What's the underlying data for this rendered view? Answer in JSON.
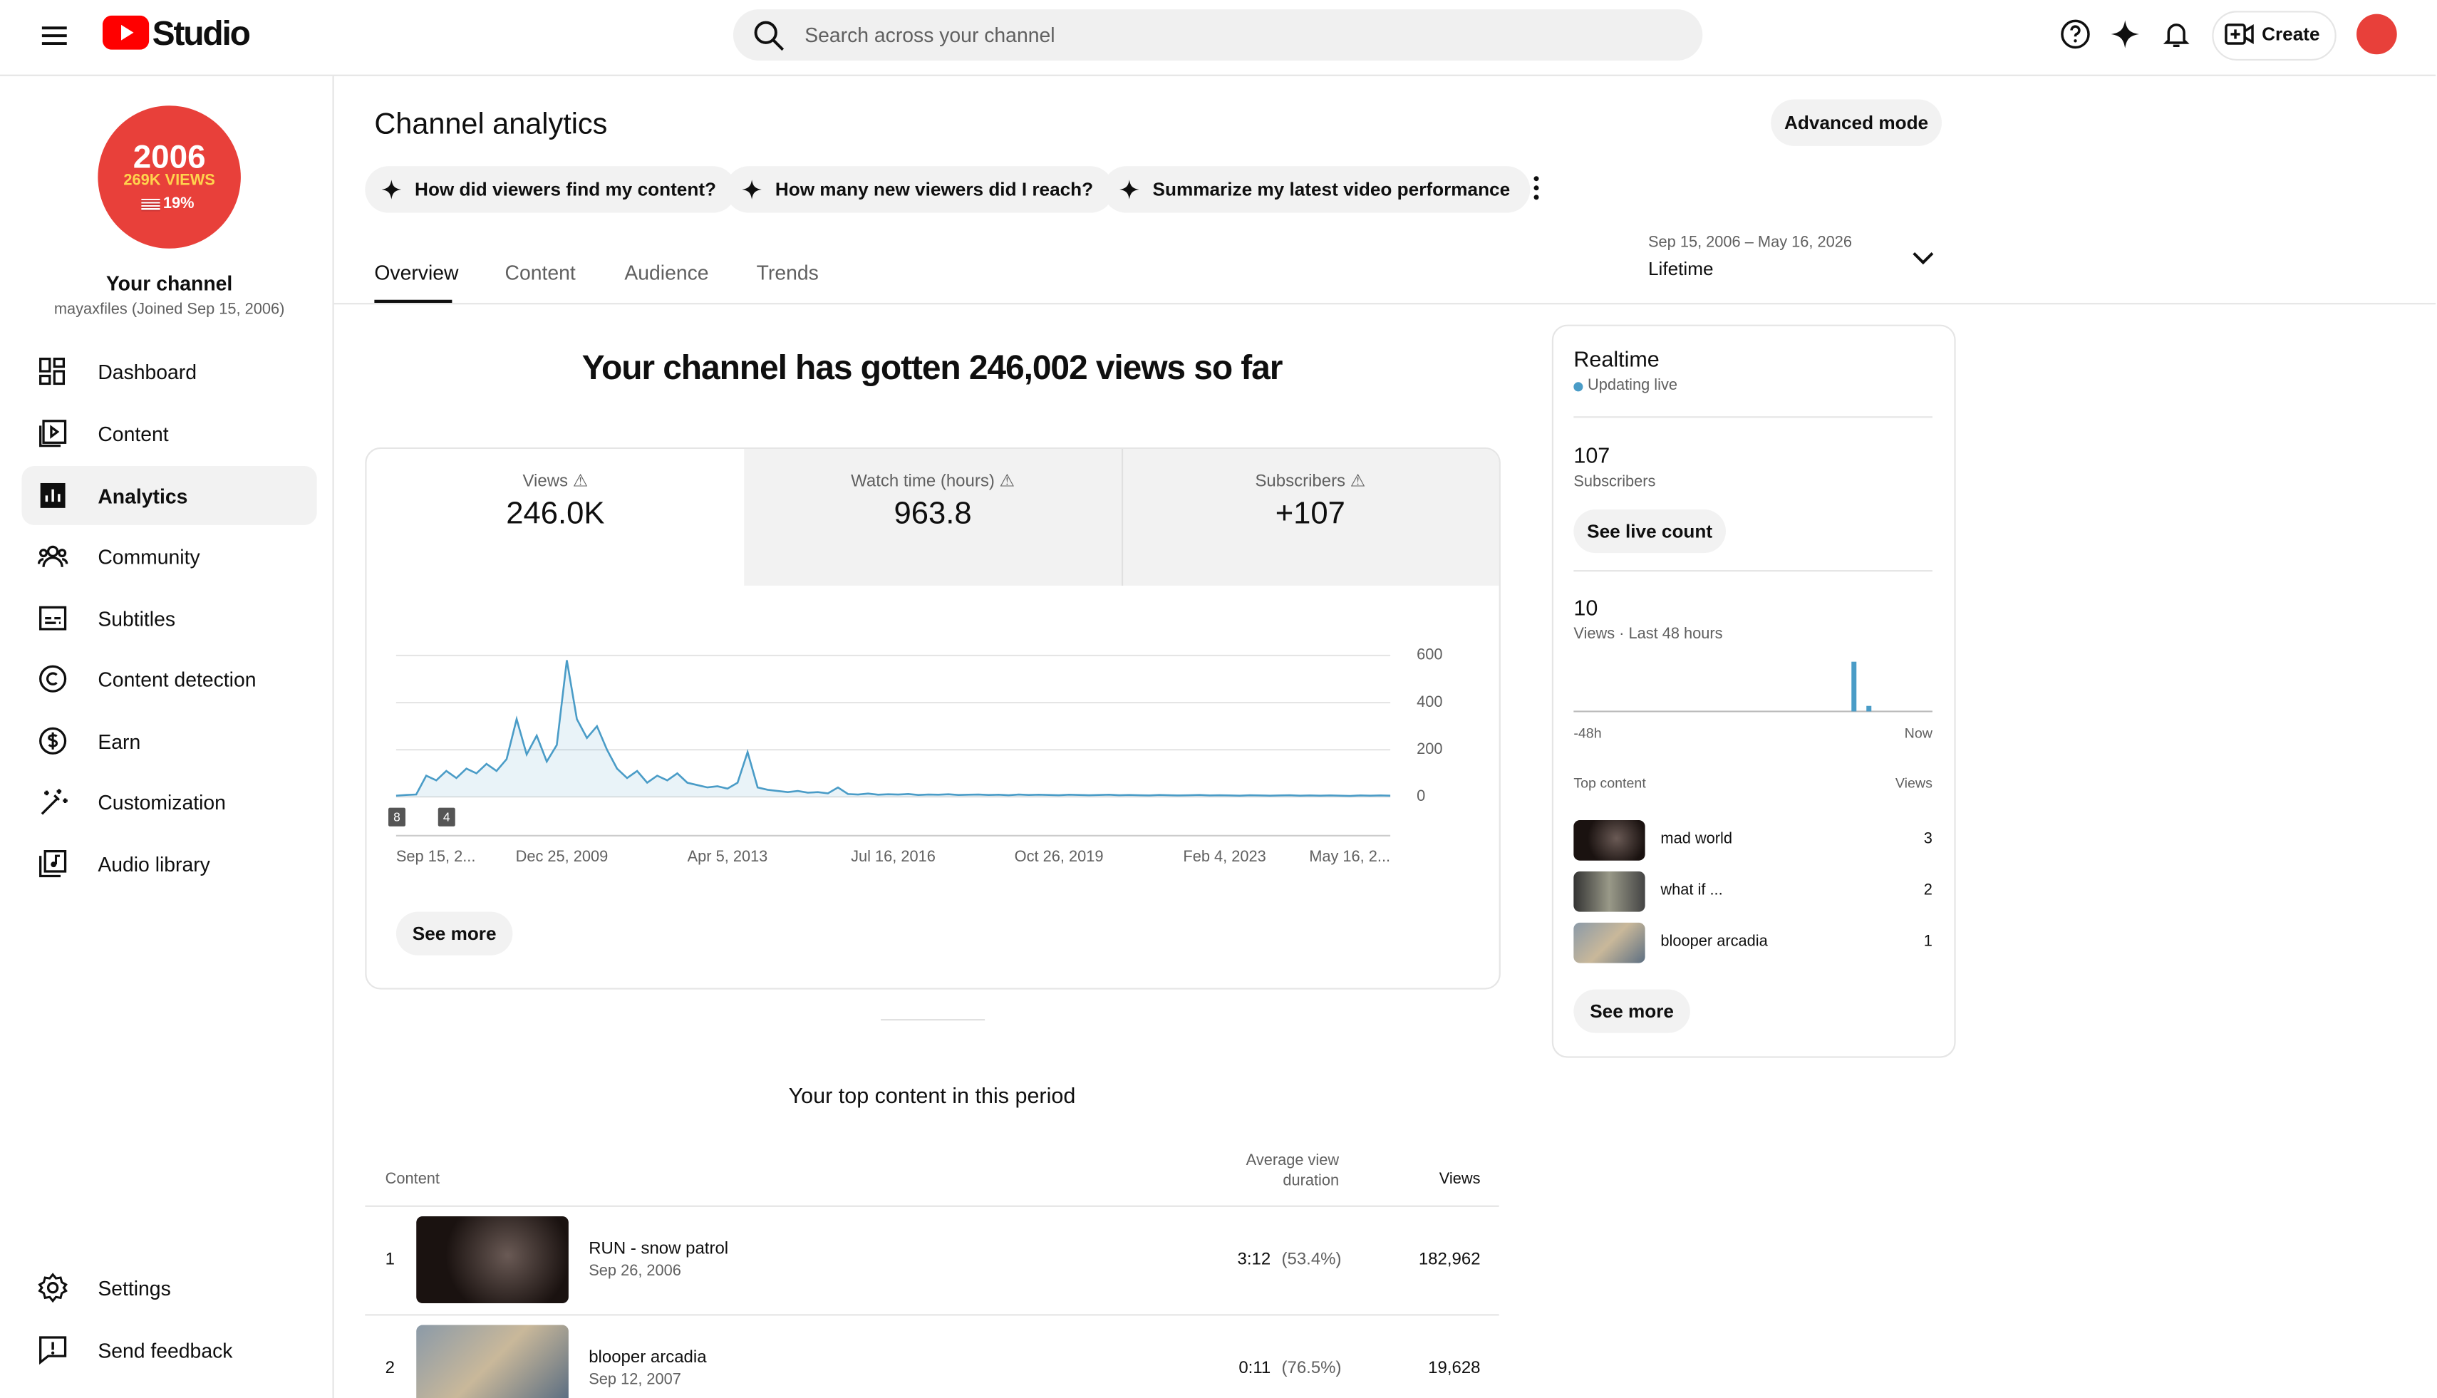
{
  "header": {
    "logo": "Studio",
    "search_placeholder": "Search across your channel",
    "create": "Create"
  },
  "sidebar": {
    "avatar": {
      "year": "2006",
      "views": "269K VIEWS",
      "pct": "19%"
    },
    "channel_title": "Your channel",
    "channel_sub": "mayaxfiles (Joined Sep 15, 2006)",
    "nav": [
      "Dashboard",
      "Content",
      "Analytics",
      "Community",
      "Subtitles",
      "Content detection",
      "Earn",
      "Customization",
      "Audio library"
    ],
    "bottom": [
      "Settings",
      "Send feedback"
    ]
  },
  "page": {
    "title": "Channel analytics",
    "advanced": "Advanced mode",
    "prompts": [
      "How did viewers find my content?",
      "How many new viewers did I reach?",
      "Summarize my latest video performance"
    ],
    "tabs": [
      "Overview",
      "Content",
      "Audience",
      "Trends"
    ],
    "date_range": "Sep 15, 2006 – May 16, 2026",
    "period": "Lifetime"
  },
  "summary": {
    "headline": "Your channel has gotten 246,002 views so far",
    "metrics": [
      {
        "label": "Views",
        "value": "246.0K"
      },
      {
        "label": "Watch time (hours)",
        "value": "963.8"
      },
      {
        "label": "Subscribers",
        "value": "+107"
      }
    ]
  },
  "views_chart": {
    "type": "line",
    "color": "#4a9cc7",
    "ylim": [
      0,
      600
    ],
    "yticks": [
      0,
      200,
      400,
      600
    ],
    "x_labels": [
      "Sep 15, 2...",
      "Dec 25, 2009",
      "Apr 5, 2013",
      "Jul 16, 2016",
      "Oct 26, 2019",
      "Feb 4, 2023",
      "May 16, 2..."
    ],
    "values": [
      5,
      8,
      10,
      90,
      70,
      110,
      80,
      120,
      100,
      140,
      110,
      160,
      330,
      180,
      260,
      150,
      220,
      580,
      330,
      250,
      300,
      200,
      120,
      80,
      110,
      60,
      90,
      70,
      100,
      60,
      50,
      40,
      45,
      35,
      60,
      190,
      40,
      30,
      25,
      20,
      25,
      18,
      20,
      15,
      40,
      12,
      10,
      14,
      9,
      11,
      10,
      12,
      8,
      10,
      9,
      11,
      8,
      9,
      10,
      8,
      9,
      7,
      10,
      8,
      9,
      8,
      7,
      9,
      8,
      7,
      8,
      9,
      7,
      8,
      7,
      6,
      8,
      7,
      6,
      7,
      8,
      6,
      7,
      6,
      5,
      7,
      6,
      5,
      6,
      7,
      5,
      6,
      5,
      6,
      5,
      4,
      6,
      5,
      6,
      5
    ],
    "markers": [
      "8",
      "4"
    ],
    "see_more": "See more"
  },
  "top_content": {
    "title": "Your top content in this period",
    "headers": [
      "Content",
      "Average view duration",
      "Views"
    ],
    "rows": [
      {
        "rank": "1",
        "title": "RUN - snow patrol",
        "date": "Sep 26, 2006",
        "duration": "3:12",
        "pct": "(53.4%)",
        "views": "182,962"
      },
      {
        "rank": "2",
        "title": "blooper arcadia",
        "date": "Sep 12, 2007",
        "duration": "0:11",
        "pct": "(76.5%)",
        "views": "19,628"
      }
    ]
  },
  "realtime": {
    "title": "Realtime",
    "status": "Updating live",
    "subs_value": "107",
    "subs_label": "Subscribers",
    "live_button": "See live count",
    "views_value": "10",
    "views_label": "Views · Last 48 hours",
    "color": "#4a9cc7",
    "hourly": [
      0,
      0,
      0,
      0,
      0,
      0,
      0,
      0,
      0,
      0,
      0,
      0,
      0,
      0,
      0,
      0,
      0,
      0,
      0,
      0,
      0,
      0,
      0,
      0,
      0,
      0,
      0,
      0,
      0,
      0,
      0,
      0,
      0,
      0,
      0,
      0,
      0,
      9,
      0,
      1,
      0,
      0,
      0,
      0,
      0,
      0,
      0,
      0
    ],
    "axis_start": "-48h",
    "axis_end": "Now",
    "top_label": "Top content",
    "top_views_label": "Views",
    "items": [
      {
        "title": "mad world",
        "views": "3"
      },
      {
        "title": "what if ...",
        "views": "2"
      },
      {
        "title": "blooper arcadia",
        "views": "1"
      }
    ],
    "see_more": "See more"
  }
}
